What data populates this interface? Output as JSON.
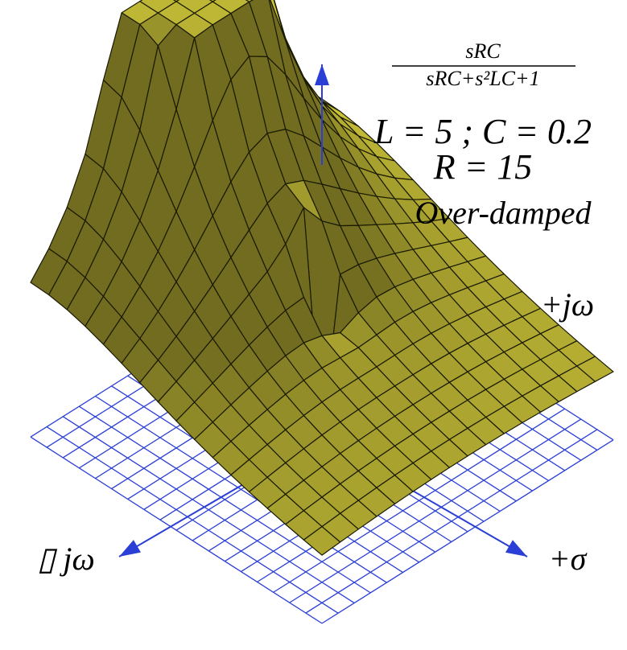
{
  "formula": {
    "numerator": "sRC",
    "denominator": "sRC+s²LC+1"
  },
  "parameters": [
    "L = 5 ; C = 0.2",
    "R = 15"
  ],
  "regime": "Over-damped",
  "axes": {
    "plus_j_omega": "+jω",
    "plus_sigma": "+σ",
    "minus_j_omega": "▯ jω"
  }
}
